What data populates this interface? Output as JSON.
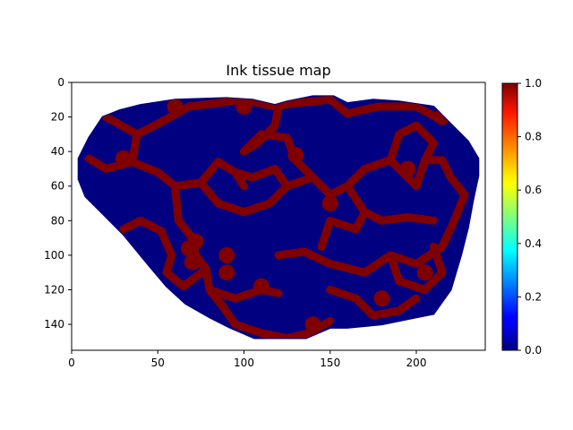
{
  "chart_data": {
    "type": "heatmap",
    "title": "Ink tissue map",
    "xlabel": "",
    "ylabel": "",
    "xlim": [
      0,
      240
    ],
    "ylim": [
      155,
      0
    ],
    "x_ticks": [
      0,
      50,
      100,
      150,
      200
    ],
    "y_ticks": [
      0,
      20,
      40,
      60,
      80,
      100,
      120,
      140
    ],
    "colormap": "jet",
    "value_range": [
      0.0,
      1.0
    ],
    "colorbar_ticks": [
      "0.0",
      "0.2",
      "0.4",
      "0.6",
      "0.8",
      "1.0"
    ],
    "values_present": [
      0.0,
      1.0
    ],
    "background_value": 0.0,
    "ink_value": 1.0,
    "tissue_outline": [
      [
        4,
        44
      ],
      [
        10,
        32
      ],
      [
        18,
        20
      ],
      [
        28,
        16
      ],
      [
        40,
        13
      ],
      [
        60,
        10
      ],
      [
        90,
        9
      ],
      [
        105,
        10
      ],
      [
        118,
        13
      ],
      [
        125,
        11
      ],
      [
        140,
        8
      ],
      [
        152,
        8
      ],
      [
        160,
        12
      ],
      [
        175,
        10
      ],
      [
        190,
        11
      ],
      [
        210,
        14
      ],
      [
        220,
        24
      ],
      [
        230,
        34
      ],
      [
        236,
        44
      ],
      [
        236,
        54
      ],
      [
        233,
        68
      ],
      [
        230,
        84
      ],
      [
        226,
        100
      ],
      [
        220,
        120
      ],
      [
        210,
        134
      ],
      [
        200,
        136
      ],
      [
        180,
        140
      ],
      [
        160,
        142
      ],
      [
        150,
        142
      ],
      [
        136,
        148
      ],
      [
        120,
        148
      ],
      [
        106,
        148
      ],
      [
        92,
        142
      ],
      [
        80,
        136
      ],
      [
        66,
        128
      ],
      [
        55,
        118
      ],
      [
        44,
        105
      ],
      [
        30,
        88
      ],
      [
        18,
        76
      ],
      [
        8,
        66
      ],
      [
        4,
        56
      ]
    ],
    "ink_paths": [
      [
        [
          20,
          20
        ],
        [
          38,
          30
        ],
        [
          50,
          24
        ],
        [
          68,
          14
        ],
        [
          100,
          10
        ],
        [
          118,
          14
        ],
        [
          130,
          12
        ],
        [
          150,
          10
        ]
      ],
      [
        [
          150,
          10
        ],
        [
          160,
          18
        ],
        [
          178,
          14
        ],
        [
          200,
          14
        ],
        [
          215,
          22
        ]
      ],
      [
        [
          10,
          44
        ],
        [
          20,
          50
        ],
        [
          35,
          46
        ],
        [
          50,
          52
        ],
        [
          60,
          60
        ],
        [
          75,
          58
        ],
        [
          85,
          46
        ],
        [
          95,
          52
        ],
        [
          100,
          60
        ]
      ],
      [
        [
          38,
          30
        ],
        [
          35,
          46
        ]
      ],
      [
        [
          60,
          60
        ],
        [
          62,
          80
        ],
        [
          70,
          90
        ],
        [
          72,
          100
        ],
        [
          78,
          108
        ],
        [
          80,
          120
        ],
        [
          95,
          125
        ],
        [
          110,
          120
        ],
        [
          120,
          122
        ]
      ],
      [
        [
          75,
          58
        ],
        [
          85,
          70
        ],
        [
          100,
          75
        ],
        [
          115,
          70
        ],
        [
          125,
          60
        ],
        [
          140,
          55
        ]
      ],
      [
        [
          100,
          40
        ],
        [
          110,
          30
        ],
        [
          125,
          32
        ],
        [
          130,
          45
        ],
        [
          140,
          55
        ]
      ],
      [
        [
          140,
          55
        ],
        [
          150,
          65
        ],
        [
          160,
          60
        ],
        [
          170,
          50
        ],
        [
          185,
          45
        ],
        [
          195,
          55
        ],
        [
          200,
          60
        ]
      ],
      [
        [
          200,
          60
        ],
        [
          205,
          45
        ],
        [
          210,
          35
        ],
        [
          200,
          25
        ],
        [
          190,
          30
        ],
        [
          185,
          45
        ]
      ],
      [
        [
          160,
          60
        ],
        [
          170,
          75
        ],
        [
          165,
          85
        ],
        [
          150,
          80
        ],
        [
          145,
          95
        ]
      ],
      [
        [
          120,
          100
        ],
        [
          135,
          98
        ],
        [
          150,
          105
        ],
        [
          170,
          110
        ],
        [
          185,
          100
        ],
        [
          200,
          105
        ],
        [
          215,
          95
        ],
        [
          222,
          80
        ]
      ],
      [
        [
          185,
          100
        ],
        [
          190,
          115
        ],
        [
          205,
          120
        ],
        [
          215,
          110
        ],
        [
          210,
          95
        ]
      ],
      [
        [
          80,
          120
        ],
        [
          88,
          130
        ],
        [
          95,
          140
        ],
        [
          110,
          145
        ],
        [
          125,
          148
        ],
        [
          138,
          145
        ],
        [
          150,
          138
        ]
      ],
      [
        [
          150,
          120
        ],
        [
          165,
          125
        ],
        [
          175,
          135
        ],
        [
          190,
          132
        ],
        [
          200,
          125
        ]
      ],
      [
        [
          30,
          85
        ],
        [
          40,
          80
        ],
        [
          52,
          86
        ],
        [
          58,
          100
        ],
        [
          55,
          110
        ],
        [
          65,
          118
        ],
        [
          78,
          108
        ]
      ],
      [
        [
          222,
          80
        ],
        [
          228,
          65
        ],
        [
          220,
          55
        ],
        [
          215,
          45
        ],
        [
          205,
          45
        ]
      ],
      [
        [
          120,
          14
        ],
        [
          118,
          25
        ],
        [
          108,
          35
        ],
        [
          100,
          40
        ]
      ],
      [
        [
          170,
          75
        ],
        [
          180,
          80
        ],
        [
          195,
          78
        ],
        [
          210,
          80
        ]
      ],
      [
        [
          95,
          52
        ],
        [
          105,
          55
        ],
        [
          118,
          50
        ],
        [
          125,
          60
        ]
      ]
    ],
    "ink_blobs": [
      [
        72,
        92
      ],
      [
        68,
        96
      ],
      [
        70,
        104
      ],
      [
        90,
        110
      ],
      [
        110,
        118
      ],
      [
        130,
        42
      ],
      [
        150,
        70
      ],
      [
        195,
        50
      ],
      [
        215,
        20
      ],
      [
        100,
        14
      ],
      [
        60,
        14
      ],
      [
        180,
        125
      ],
      [
        205,
        110
      ],
      [
        30,
        44
      ],
      [
        140,
        140
      ],
      [
        90,
        100
      ]
    ]
  }
}
